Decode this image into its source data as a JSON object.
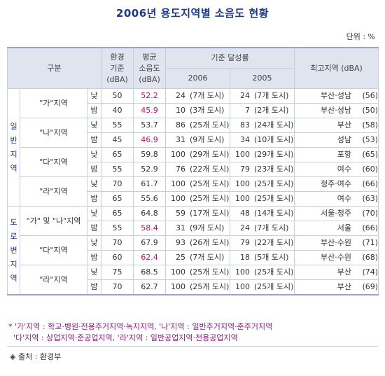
{
  "title": "2006년 용도지역별 소음도 현황",
  "unit": "단위 : %",
  "headers": {
    "category": "구분",
    "env_std": [
      "환경",
      "기준",
      "(dBA)"
    ],
    "avg_noise": [
      "평균",
      "소음도",
      "(dBA)"
    ],
    "achieve_rate": "기준 달성률",
    "y2006": "2006",
    "y2005": "2005",
    "max_area": "최고지역 (dBA)"
  },
  "groups": [
    {
      "label": [
        "일",
        "반",
        "지",
        "역"
      ],
      "zones": [
        {
          "name": "\"가\"지역",
          "rows": [
            {
              "t": "낮",
              "std": "50",
              "avg": "52.2",
              "avg_red": true,
              "p06": "24",
              "c06": "(7개 도시)",
              "p05": "24",
              "c05": "(7개 도시)",
              "max": "부산·성남",
              "maxv": "(56)"
            },
            {
              "t": "밤",
              "std": "40",
              "avg": "45.9",
              "avg_red": true,
              "p06": "10",
              "c06": "(3개 도시)",
              "p05": "7",
              "c05": "(2개 도시)",
              "max": "부산·성남",
              "maxv": "(50)"
            }
          ]
        },
        {
          "name": "\"나\"지역",
          "rows": [
            {
              "t": "낮",
              "std": "55",
              "avg": "53.7",
              "avg_red": false,
              "p06": "86",
              "c06": "(25개 도시)",
              "p05": "83",
              "c05": "(24개 도시)",
              "max": "부산",
              "maxv": "(58)"
            },
            {
              "t": "밤",
              "std": "45",
              "avg": "46.9",
              "avg_red": true,
              "p06": "31",
              "c06": "(9개 도시)",
              "p05": "34",
              "c05": "(10개 도시)",
              "max": "성남",
              "maxv": "(53)"
            }
          ]
        },
        {
          "name": "\"다\"지역",
          "rows": [
            {
              "t": "낮",
              "std": "65",
              "avg": "59.8",
              "avg_red": false,
              "p06": "100",
              "c06": "(29개 도시)",
              "p05": "100",
              "c05": "(29개 도시)",
              "max": "포항",
              "maxv": "(65)"
            },
            {
              "t": "밤",
              "std": "55",
              "avg": "52.9",
              "avg_red": false,
              "p06": "76",
              "c06": "(22개 도시)",
              "p05": "79",
              "c05": "(23개 도시)",
              "max": "여수",
              "maxv": "(60)"
            }
          ]
        },
        {
          "name": "\"라\"지역",
          "rows": [
            {
              "t": "낮",
              "std": "70",
              "avg": "61.7",
              "avg_red": false,
              "p06": "100",
              "c06": "(25개 도시)",
              "p05": "100",
              "c05": "(25개 도시)",
              "max": "청주·여수",
              "maxv": "(66)"
            },
            {
              "t": "밤",
              "std": "65",
              "avg": "55.6",
              "avg_red": false,
              "p06": "100",
              "c06": "(25개 도시)",
              "p05": "100",
              "c05": "(25개 도시)",
              "max": "여수",
              "maxv": "(63)"
            }
          ]
        }
      ]
    },
    {
      "label": [
        "도",
        "로",
        "변",
        "지",
        "역"
      ],
      "zones": [
        {
          "name": "\"가\" 및 \"나\"지역",
          "rows": [
            {
              "t": "낮",
              "std": "65",
              "avg": "64.8",
              "avg_red": false,
              "p06": "59",
              "c06": "(17개 도시)",
              "p05": "48",
              "c05": "(14개 도시)",
              "max": "서울·청주",
              "maxv": "(70)"
            },
            {
              "t": "밤",
              "std": "55",
              "avg": "58.4",
              "avg_red": true,
              "p06": "31",
              "c06": "(9개 도시)",
              "p05": "24",
              "c05": "(7개 도시)",
              "max": "서울",
              "maxv": "(66)"
            }
          ]
        },
        {
          "name": "\"다\"지역",
          "rows": [
            {
              "t": "낮",
              "std": "70",
              "avg": "67.9",
              "avg_red": false,
              "p06": "93",
              "c06": "(26개 도시)",
              "p05": "79",
              "c05": "(22개 도시)",
              "max": "부산·수원",
              "maxv": "(71)"
            },
            {
              "t": "밤",
              "std": "60",
              "avg": "62.4",
              "avg_red": true,
              "p06": "25",
              "c06": "(7개 도시)",
              "p05": "18",
              "c05": "(5개 도시)",
              "max": "부산·수원",
              "maxv": "(68)"
            }
          ]
        },
        {
          "name": "\"라\"지역",
          "rows": [
            {
              "t": "낮",
              "std": "75",
              "avg": "68.5",
              "avg_red": false,
              "p06": "100",
              "c06": "(25개 도시)",
              "p05": "100",
              "c05": "(25개 도시)",
              "max": "부산",
              "maxv": "(74)"
            },
            {
              "t": "밤",
              "std": "70",
              "avg": "62.7",
              "avg_red": false,
              "p06": "100",
              "c06": "(25개 도시)",
              "p05": "100",
              "c05": "(25개 도시)",
              "max": "부산",
              "maxv": "(69)"
            }
          ]
        }
      ]
    }
  ],
  "notes": [
    "* '가'지역 : 학교·병원·전용주거지역·녹지지역, '나'지역 : 일반주거지역·준주거지역",
    "  '다'지역 : 상업지역·준공업지역, '라'지역 : 일반공업지역·전용공업지역"
  ],
  "source": "◈ 출처 : 환경부",
  "colors": {
    "title": "#1c3a8c",
    "header_bg": "#dfe4ef",
    "highlight": "#c0145c",
    "note": "#8a1e7e"
  }
}
